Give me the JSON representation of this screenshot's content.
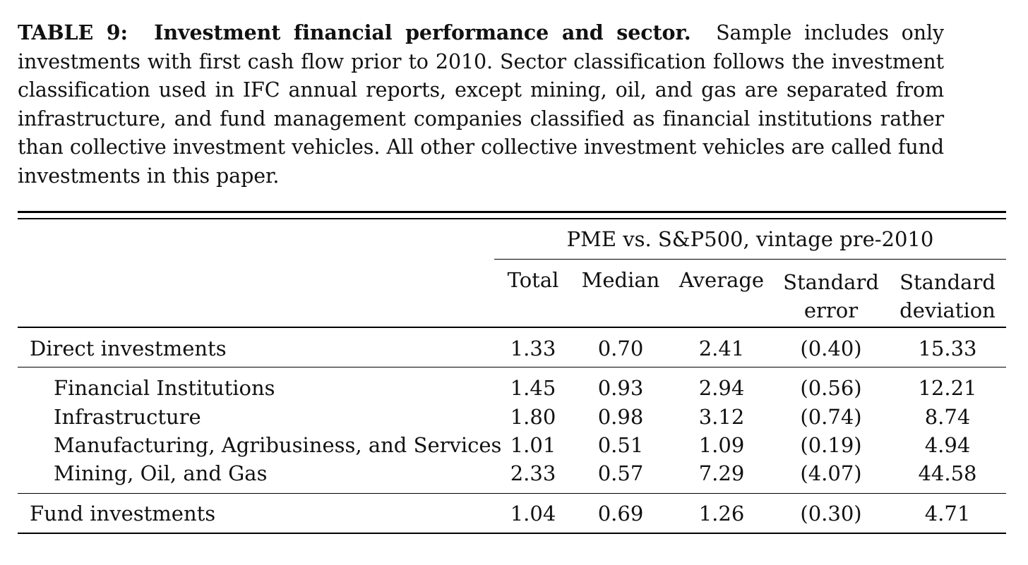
{
  "caption": {
    "label": "TABLE 9:",
    "title": "Investment financial performance and sector.",
    "body": "Sample includes only investments with first cash flow prior to 2010. Sector classification follows the investment classification used in IFC annual reports, except mining, oil, and gas are separated from infrastructure, and fund management companies classified as financial institutions rather than collective investment vehicles. All other collective investment vehicles are called fund investments in this paper."
  },
  "table": {
    "group_header": "PME vs. S&P500, vintage pre-2010",
    "columns": [
      {
        "line1": "Total",
        "line2": ""
      },
      {
        "line1": "Median",
        "line2": ""
      },
      {
        "line1": "Average",
        "line2": ""
      },
      {
        "line1": "Standard",
        "line2": "error"
      },
      {
        "line1": "Standard",
        "line2": "deviation"
      }
    ],
    "rows": [
      {
        "label": "Direct investments",
        "values": [
          "1.33",
          "0.70",
          "2.41",
          "(0.40)",
          "15.33"
        ]
      },
      {
        "label": "Financial Institutions",
        "values": [
          "1.45",
          "0.93",
          "2.94",
          "(0.56)",
          "12.21"
        ]
      },
      {
        "label": "Infrastructure",
        "values": [
          "1.80",
          "0.98",
          "3.12",
          "(0.74)",
          "8.74"
        ]
      },
      {
        "label": "Manufacturing, Agribusiness, and Services",
        "values": [
          "1.01",
          "0.51",
          "1.09",
          "(0.19)",
          "4.94"
        ]
      },
      {
        "label": "Mining, Oil, and Gas",
        "values": [
          "2.33",
          "0.57",
          "7.29",
          "(4.07)",
          "44.58"
        ]
      },
      {
        "label": "Fund investments",
        "values": [
          "1.04",
          "0.69",
          "1.26",
          "(0.30)",
          "4.71"
        ]
      }
    ]
  }
}
